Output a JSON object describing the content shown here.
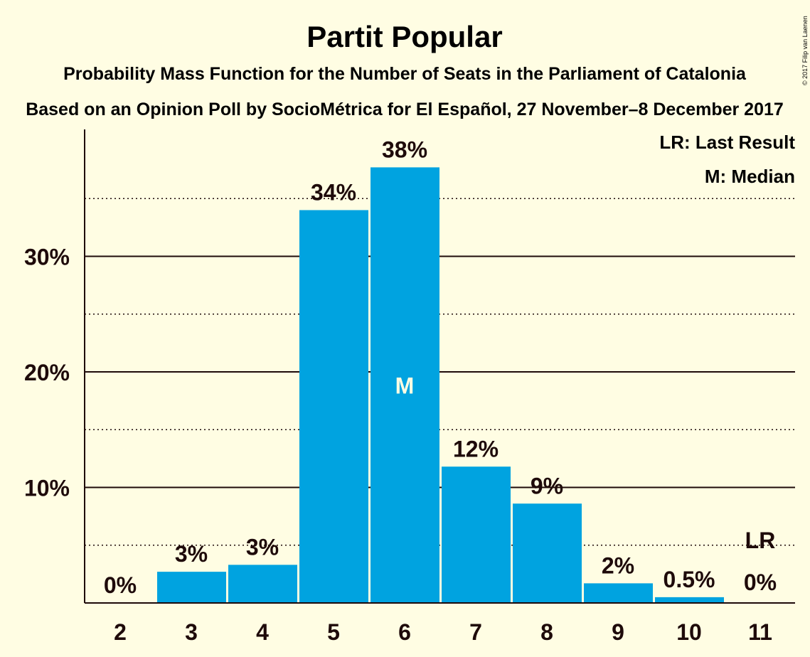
{
  "title": "Partit Popular",
  "subtitle1": "Probability Mass Function for the Number of Seats in the Parliament of Catalonia",
  "subtitle2": "Based on an Opinion Poll by SocioMétrica for El Español, 27 November–8 December 2017",
  "copyright": "© 2017 Filip van Laenen",
  "legend": {
    "lr": "LR: Last Result",
    "m": "M: Median"
  },
  "colors": {
    "bar": "#00A3E0",
    "text": "#1E0A0A",
    "background": "#FFFDE3",
    "median_text": "#FFFDE3"
  },
  "chart_data": {
    "type": "bar",
    "categories": [
      "2",
      "3",
      "4",
      "5",
      "6",
      "7",
      "8",
      "9",
      "10",
      "11"
    ],
    "values": [
      0,
      2.7,
      3.3,
      34.0,
      37.7,
      11.8,
      8.6,
      1.7,
      0.5,
      0
    ],
    "labels": [
      "0%",
      "3%",
      "3%",
      "34%",
      "38%",
      "12%",
      "9%",
      "2%",
      "0.5%",
      "0%"
    ],
    "y_ticks": [
      {
        "value": 10,
        "label": "10%"
      },
      {
        "value": 20,
        "label": "20%"
      },
      {
        "value": 30,
        "label": "30%"
      }
    ],
    "minor_gridlines": [
      5,
      15,
      25,
      35
    ],
    "ylim": [
      0,
      41
    ],
    "median_category": "6",
    "median_marker": "M",
    "last_result_category": "11",
    "last_result_marker": "LR",
    "last_result_value": 5,
    "legend_position": "top-right"
  }
}
